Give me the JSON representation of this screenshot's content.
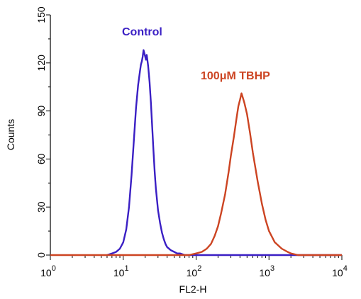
{
  "chart_data": {
    "type": "line",
    "title": "",
    "xlabel": "FL2-H",
    "ylabel": "Counts",
    "x_scale": "log",
    "xlim": [
      1,
      10000
    ],
    "ylim": [
      0,
      150
    ],
    "grid": false,
    "y_ticks": [
      0,
      30,
      60,
      90,
      120,
      150
    ],
    "y_tick_labels": [
      "0",
      "30",
      "60",
      "90",
      "120",
      "150"
    ],
    "x_ticks": [
      {
        "value": 1,
        "base": "10",
        "exp": "0"
      },
      {
        "value": 10,
        "base": "10",
        "exp": "1"
      },
      {
        "value": 100,
        "base": "10",
        "exp": "2"
      },
      {
        "value": 1000,
        "base": "10",
        "exp": "3"
      },
      {
        "value": 10000,
        "base": "10",
        "exp": "4"
      }
    ],
    "series": [
      {
        "name": "Control",
        "color": "#3a1fc4",
        "x": [
          6,
          7,
          8,
          9,
          10,
          11,
          12,
          13,
          14,
          15,
          16,
          17,
          17.5,
          18,
          18.5,
          19,
          19.5,
          20,
          20.5,
          21,
          22,
          23,
          24,
          25,
          26,
          27,
          28,
          30,
          32,
          34,
          36,
          38,
          40,
          45,
          50,
          55,
          60,
          70,
          80,
          100,
          150,
          500,
          1000,
          5000,
          10000
        ],
        "values": [
          0,
          1,
          2,
          4,
          8,
          16,
          30,
          50,
          72,
          92,
          106,
          115,
          119,
          121,
          124,
          128,
          126,
          124,
          122,
          125,
          118,
          108,
          95,
          80,
          65,
          52,
          42,
          28,
          20,
          14,
          10,
          7,
          5,
          3,
          2,
          1,
          1,
          0,
          0,
          0,
          0,
          0,
          0,
          0,
          0
        ]
      },
      {
        "name": "100μM TBHP",
        "color": "#cc4422",
        "x": [
          1,
          10,
          50,
          80,
          100,
          120,
          140,
          160,
          180,
          200,
          220,
          250,
          280,
          300,
          330,
          360,
          380,
          400,
          420,
          440,
          460,
          500,
          550,
          600,
          700,
          800,
          900,
          1000,
          1200,
          1500,
          1800,
          2000,
          2500,
          3000,
          10000
        ],
        "values": [
          0,
          0,
          0,
          0,
          1,
          2,
          4,
          7,
          12,
          18,
          26,
          38,
          52,
          62,
          74,
          86,
          93,
          97,
          101,
          98,
          95,
          88,
          76,
          64,
          46,
          32,
          22,
          15,
          8,
          4,
          2,
          1,
          0,
          0,
          0
        ]
      }
    ],
    "annotations": [
      {
        "text": "Control",
        "series": "Control"
      },
      {
        "text": "100μM TBHP",
        "series": "100μM TBHP"
      }
    ]
  }
}
